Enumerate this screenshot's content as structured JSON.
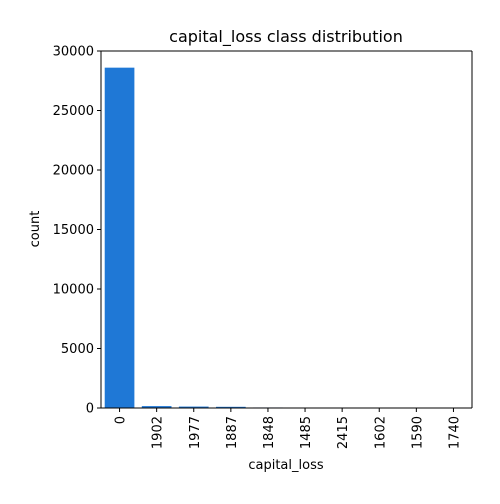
{
  "chart_data": {
    "type": "bar",
    "title": "capital_loss class distribution",
    "xlabel": "capital_loss",
    "ylabel": "count",
    "categories": [
      "0",
      "1902",
      "1977",
      "1887",
      "1848",
      "1485",
      "2415",
      "1602",
      "1590",
      "1740"
    ],
    "values": [
      28600,
      160,
      120,
      100,
      45,
      40,
      38,
      30,
      28,
      28
    ],
    "ylim": [
      0,
      30000
    ],
    "yticks": [
      0,
      5000,
      10000,
      15000,
      20000,
      25000,
      30000
    ],
    "grid": false,
    "legend": "none",
    "bar_color": "#1f78d6"
  }
}
